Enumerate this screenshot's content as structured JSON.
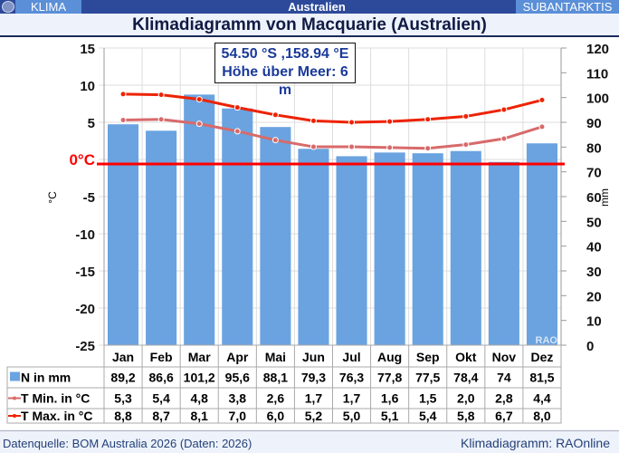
{
  "topbar": {
    "left": "KLIMA",
    "center": "Australien",
    "right": "SUBANTARKTIS"
  },
  "title": "Klimadiagramm von Macquarie (Australien)",
  "info": {
    "coords": "54.50 °S ,158.94 °E",
    "elevation": "Höhe über Meer: 6 m"
  },
  "footer": {
    "source": "Datenquelle: BOM Australia 2026 (Daten: 2026)",
    "credit": "Klimadiagramm: RAOnline"
  },
  "colors": {
    "bars": "#6aa3e0",
    "tmin": "#d86a6a",
    "tmax": "#ee2200",
    "zero": "#ff0000"
  },
  "chart_data": {
    "type": "bar+line",
    "categories": [
      "Jan",
      "Feb",
      "Mar",
      "Apr",
      "Mai",
      "Jun",
      "Jul",
      "Aug",
      "Sep",
      "Okt",
      "Nov",
      "Dez"
    ],
    "y_left": {
      "label": "°C",
      "range": [
        -25,
        15
      ],
      "ticks": [
        "15",
        "10",
        "5",
        "0°C",
        "-5",
        "-10",
        "-15",
        "-20",
        "-25"
      ]
    },
    "y_right": {
      "label": "mm",
      "range": [
        0,
        120
      ],
      "ticks": [
        "120",
        "110",
        "100",
        "90",
        "80",
        "70",
        "60",
        "50",
        "40",
        "30",
        "20",
        "10",
        "0"
      ]
    },
    "grid": true,
    "watermark": "RAO",
    "series": [
      {
        "name": "N in mm",
        "type": "bar",
        "axis": "right",
        "values": [
          89.2,
          86.6,
          101.2,
          95.6,
          88.1,
          79.3,
          76.3,
          77.8,
          77.5,
          78.4,
          74,
          81.5
        ],
        "labels": [
          "89,2",
          "86,6",
          "101,2",
          "95,6",
          "88,1",
          "79,3",
          "76,3",
          "77,8",
          "77,5",
          "78,4",
          "74",
          "81,5"
        ]
      },
      {
        "name": "T Min. in °C",
        "type": "line",
        "axis": "left",
        "values": [
          5.3,
          5.4,
          4.8,
          3.8,
          2.6,
          1.7,
          1.7,
          1.6,
          1.5,
          2.0,
          2.8,
          4.4
        ],
        "labels": [
          "5,3",
          "5,4",
          "4,8",
          "3,8",
          "2,6",
          "1,7",
          "1,7",
          "1,6",
          "1,5",
          "2,0",
          "2,8",
          "4,4"
        ]
      },
      {
        "name": "T Max. in °C",
        "type": "line",
        "axis": "left",
        "values": [
          8.8,
          8.7,
          8.1,
          7.0,
          6.0,
          5.2,
          5.0,
          5.1,
          5.4,
          5.8,
          6.7,
          8.0
        ],
        "labels": [
          "8,8",
          "8,7",
          "8,1",
          "7,0",
          "6,0",
          "5,2",
          "5,0",
          "5,1",
          "5,4",
          "5,8",
          "6,7",
          "8,0"
        ]
      }
    ]
  }
}
